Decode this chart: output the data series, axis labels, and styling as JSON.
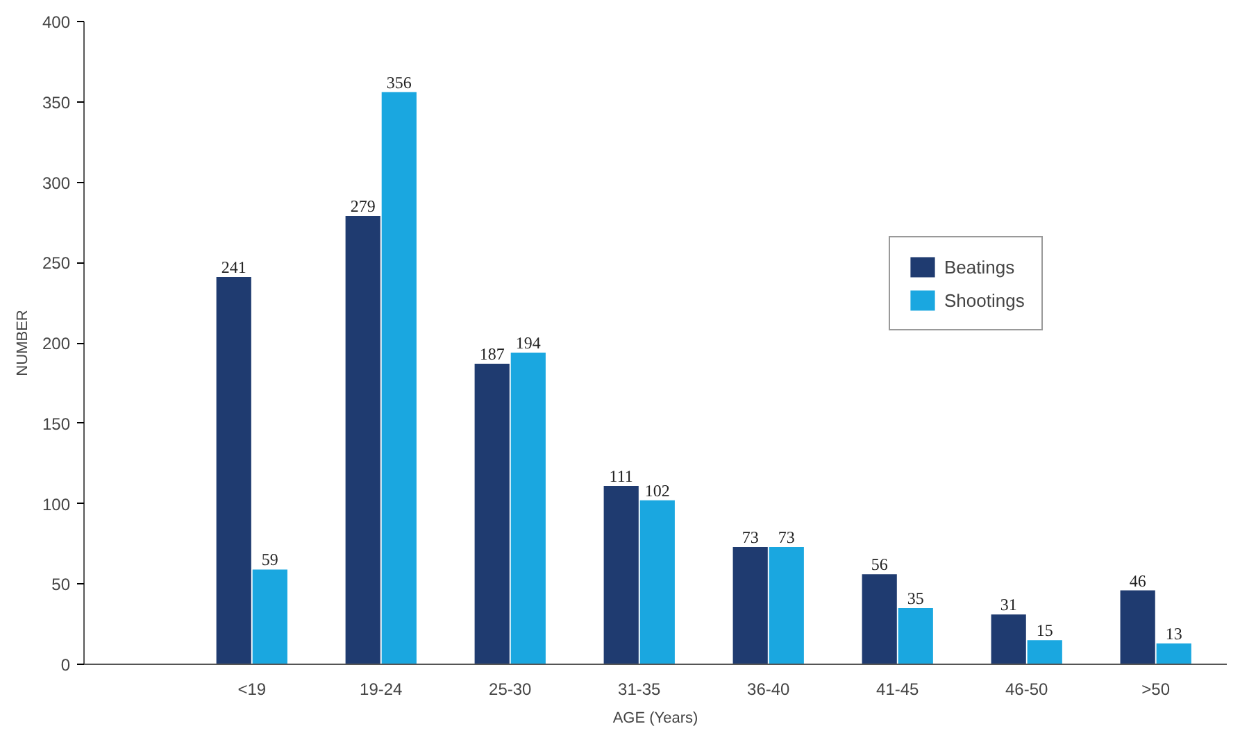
{
  "chart_data": {
    "type": "bar",
    "xlabel": "AGE (Years)",
    "ylabel": "NUMBER",
    "categories": [
      "<19",
      "19-24",
      "25-30",
      "31-35",
      "36-40",
      "41-45",
      "46-50",
      ">50"
    ],
    "series": [
      {
        "name": "Beatings",
        "color": "#1f3b70",
        "values": [
          241,
          279,
          187,
          111,
          73,
          56,
          31,
          46
        ]
      },
      {
        "name": "Shootings",
        "color": "#1aa7e0",
        "values": [
          59,
          356,
          194,
          102,
          73,
          35,
          15,
          13
        ]
      }
    ],
    "ylim": [
      0,
      400
    ],
    "yticks": [
      0,
      50,
      100,
      150,
      200,
      250,
      300,
      350,
      400
    ],
    "grid": false,
    "legend": "top right",
    "data_labels": true
  }
}
